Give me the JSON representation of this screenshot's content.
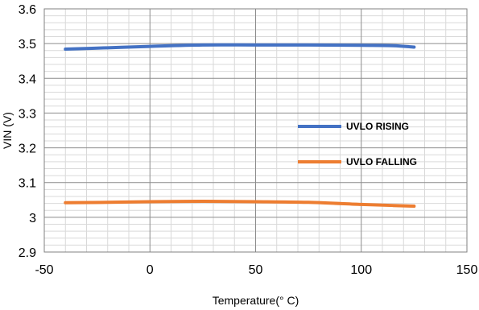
{
  "chart_data": {
    "type": "line",
    "title": "",
    "xlabel": "Temperature(° C)",
    "ylabel": "VIN (V)",
    "xlim": [
      -50,
      150
    ],
    "ylim": [
      2.9,
      3.6
    ],
    "x_ticks": [
      "-50",
      "0",
      "50",
      "100",
      "150"
    ],
    "y_ticks": [
      "2.9",
      "3",
      "3.1",
      "3.2",
      "3.3",
      "3.4",
      "3.5",
      "3.6"
    ],
    "grid": true,
    "legend_position": "right-center",
    "series": [
      {
        "name": "UVLO RISING",
        "color": "#4472C4",
        "x": [
          -40,
          -20,
          0,
          25,
          50,
          75,
          100,
          115,
          125
        ],
        "y": [
          3.484,
          3.488,
          3.492,
          3.496,
          3.496,
          3.496,
          3.495,
          3.494,
          3.49
        ]
      },
      {
        "name": "UVLO FALLING",
        "color": "#ED7D31",
        "x": [
          -40,
          -20,
          0,
          25,
          50,
          75,
          100,
          115,
          125
        ],
        "y": [
          3.042,
          3.043,
          3.045,
          3.046,
          3.045,
          3.043,
          3.037,
          3.034,
          3.032
        ]
      }
    ]
  }
}
